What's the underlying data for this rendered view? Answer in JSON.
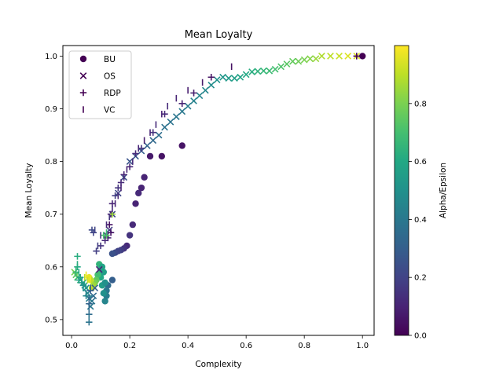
{
  "chart_data": {
    "type": "scatter",
    "title": "Mean Loyalty",
    "xlabel": "Complexity",
    "ylabel": "Mean Loyalty",
    "xlim": [
      -0.03,
      1.04
    ],
    "ylim": [
      0.47,
      1.02
    ],
    "xticks": [
      "0.0",
      "0.2",
      "0.4",
      "0.6",
      "0.8",
      "1.0"
    ],
    "yticks": [
      "0.5",
      "0.6",
      "0.7",
      "0.8",
      "0.9",
      "1.0"
    ],
    "grid": false,
    "legend_position": "upper-left",
    "colorbar": {
      "label": "Alpha/Epsilon",
      "range": [
        0.0,
        1.0
      ],
      "ticks": [
        "0.0",
        "0.2",
        "0.4",
        "0.6",
        "0.8"
      ],
      "colormap": "viridis"
    },
    "series": [
      {
        "name": "BU",
        "marker": "circle",
        "points": [
          [
            1.0,
            1.0,
            0.0
          ],
          [
            0.38,
            0.83,
            0.05
          ],
          [
            0.31,
            0.81,
            0.05
          ],
          [
            0.27,
            0.81,
            0.07
          ],
          [
            0.25,
            0.77,
            0.1
          ],
          [
            0.24,
            0.75,
            0.1
          ],
          [
            0.23,
            0.74,
            0.12
          ],
          [
            0.22,
            0.72,
            0.1
          ],
          [
            0.21,
            0.68,
            0.12
          ],
          [
            0.2,
            0.66,
            0.15
          ],
          [
            0.19,
            0.64,
            0.12
          ],
          [
            0.18,
            0.635,
            0.15
          ],
          [
            0.17,
            0.632,
            0.18
          ],
          [
            0.16,
            0.63,
            0.2
          ],
          [
            0.15,
            0.627,
            0.22
          ],
          [
            0.14,
            0.625,
            0.25
          ],
          [
            0.14,
            0.575,
            0.3
          ],
          [
            0.125,
            0.565,
            0.35
          ],
          [
            0.12,
            0.555,
            0.4
          ],
          [
            0.12,
            0.545,
            0.42
          ],
          [
            0.115,
            0.535,
            0.45
          ],
          [
            0.11,
            0.55,
            0.5
          ],
          [
            0.105,
            0.565,
            0.55
          ],
          [
            0.1,
            0.58,
            0.6
          ],
          [
            0.1,
            0.595,
            0.62
          ],
          [
            0.095,
            0.605,
            0.65
          ],
          [
            0.09,
            0.585,
            0.7
          ],
          [
            0.085,
            0.575,
            0.75
          ],
          [
            0.08,
            0.57,
            0.8
          ],
          [
            0.075,
            0.565,
            0.85
          ],
          [
            0.07,
            0.56,
            0.9
          ],
          [
            0.065,
            0.575,
            0.95
          ],
          [
            0.06,
            0.58,
            0.98
          ],
          [
            0.105,
            0.6,
            0.58
          ],
          [
            0.11,
            0.59,
            0.56
          ],
          [
            0.115,
            0.57,
            0.5
          ]
        ]
      },
      {
        "name": "OS",
        "marker": "x",
        "points": [
          [
            0.98,
            1.0,
            0.95
          ],
          [
            0.95,
            1.0,
            0.95
          ],
          [
            0.92,
            1.0,
            0.92
          ],
          [
            0.89,
            1.0,
            0.9
          ],
          [
            0.86,
            1.0,
            0.88
          ],
          [
            0.84,
            0.995,
            0.85
          ],
          [
            0.82,
            0.995,
            0.82
          ],
          [
            0.8,
            0.993,
            0.8
          ],
          [
            0.78,
            0.99,
            0.78
          ],
          [
            0.76,
            0.99,
            0.76
          ],
          [
            0.74,
            0.985,
            0.74
          ],
          [
            0.72,
            0.98,
            0.72
          ],
          [
            0.7,
            0.975,
            0.7
          ],
          [
            0.68,
            0.972,
            0.68
          ],
          [
            0.66,
            0.972,
            0.66
          ],
          [
            0.64,
            0.971,
            0.64
          ],
          [
            0.62,
            0.97,
            0.62
          ],
          [
            0.6,
            0.965,
            0.6
          ],
          [
            0.58,
            0.96,
            0.58
          ],
          [
            0.56,
            0.958,
            0.56
          ],
          [
            0.54,
            0.958,
            0.54
          ],
          [
            0.52,
            0.96,
            0.52
          ],
          [
            0.5,
            0.955,
            0.5
          ],
          [
            0.48,
            0.945,
            0.48
          ],
          [
            0.46,
            0.935,
            0.46
          ],
          [
            0.44,
            0.925,
            0.45
          ],
          [
            0.42,
            0.915,
            0.44
          ],
          [
            0.4,
            0.905,
            0.42
          ],
          [
            0.38,
            0.895,
            0.4
          ],
          [
            0.36,
            0.885,
            0.39
          ],
          [
            0.34,
            0.875,
            0.38
          ],
          [
            0.32,
            0.865,
            0.37
          ],
          [
            0.3,
            0.85,
            0.36
          ],
          [
            0.28,
            0.84,
            0.34
          ],
          [
            0.26,
            0.83,
            0.32
          ],
          [
            0.24,
            0.82,
            0.3
          ],
          [
            0.22,
            0.81,
            0.28
          ],
          [
            0.2,
            0.8,
            0.26
          ],
          [
            0.18,
            0.77,
            0.24
          ],
          [
            0.16,
            0.74,
            0.22
          ],
          [
            0.14,
            0.7,
            0.2
          ],
          [
            0.13,
            0.67,
            0.18
          ],
          [
            0.12,
            0.66,
            0.15
          ],
          [
            0.095,
            0.595,
            0.1
          ],
          [
            0.08,
            0.56,
            0.3
          ],
          [
            0.075,
            0.545,
            0.35
          ],
          [
            0.07,
            0.535,
            0.38
          ],
          [
            0.065,
            0.525,
            0.4
          ],
          [
            0.06,
            0.54,
            0.42
          ],
          [
            0.055,
            0.55,
            0.45
          ],
          [
            0.05,
            0.56,
            0.5
          ],
          [
            0.045,
            0.565,
            0.55
          ],
          [
            0.04,
            0.57,
            0.6
          ],
          [
            0.03,
            0.575,
            0.65
          ],
          [
            0.02,
            0.58,
            0.7
          ],
          [
            0.015,
            0.585,
            0.75
          ],
          [
            0.01,
            0.59,
            0.8
          ]
        ]
      },
      {
        "name": "RDP",
        "marker": "plus",
        "points": [
          [
            0.98,
            1.0,
            0.0
          ],
          [
            0.48,
            0.96,
            0.05
          ],
          [
            0.42,
            0.93,
            0.08
          ],
          [
            0.38,
            0.91,
            0.1
          ],
          [
            0.32,
            0.89,
            0.12
          ],
          [
            0.28,
            0.855,
            0.15
          ],
          [
            0.24,
            0.825,
            0.15
          ],
          [
            0.22,
            0.815,
            0.12
          ],
          [
            0.2,
            0.79,
            0.1
          ],
          [
            0.18,
            0.775,
            0.1
          ],
          [
            0.17,
            0.76,
            0.12
          ],
          [
            0.16,
            0.75,
            0.15
          ],
          [
            0.15,
            0.735,
            0.18
          ],
          [
            0.14,
            0.72,
            0.1
          ],
          [
            0.135,
            0.7,
            0.08
          ],
          [
            0.13,
            0.68,
            0.05
          ],
          [
            0.135,
            0.665,
            0.05
          ],
          [
            0.125,
            0.655,
            0.1
          ],
          [
            0.115,
            0.65,
            0.12
          ],
          [
            0.1,
            0.64,
            0.15
          ],
          [
            0.085,
            0.63,
            0.18
          ],
          [
            0.075,
            0.665,
            0.2
          ],
          [
            0.07,
            0.67,
            0.22
          ],
          [
            0.065,
            0.555,
            0.3
          ],
          [
            0.06,
            0.53,
            0.32
          ],
          [
            0.06,
            0.51,
            0.35
          ],
          [
            0.06,
            0.495,
            0.38
          ],
          [
            0.05,
            0.545,
            0.45
          ],
          [
            0.04,
            0.565,
            0.5
          ],
          [
            0.03,
            0.58,
            0.55
          ],
          [
            0.02,
            0.6,
            0.6
          ],
          [
            0.02,
            0.62,
            0.62
          ],
          [
            0.015,
            0.59,
            0.65
          ],
          [
            0.025,
            0.575,
            0.58
          ],
          [
            0.035,
            0.57,
            0.52
          ],
          [
            0.12,
            0.66,
            0.75
          ],
          [
            0.11,
            0.66,
            0.72
          ],
          [
            0.14,
            0.7,
            0.85
          ]
        ]
      },
      {
        "name": "VC",
        "marker": "vline",
        "points": [
          [
            0.55,
            0.98,
            0.05
          ],
          [
            0.45,
            0.95,
            0.07
          ],
          [
            0.4,
            0.935,
            0.08
          ],
          [
            0.36,
            0.92,
            0.1
          ],
          [
            0.33,
            0.905,
            0.12
          ],
          [
            0.31,
            0.89,
            0.1
          ],
          [
            0.29,
            0.87,
            0.12
          ],
          [
            0.27,
            0.855,
            0.1
          ],
          [
            0.25,
            0.84,
            0.08
          ],
          [
            0.23,
            0.825,
            0.1
          ],
          [
            0.21,
            0.8,
            0.12
          ],
          [
            0.19,
            0.785,
            0.1
          ],
          [
            0.18,
            0.77,
            0.12
          ],
          [
            0.17,
            0.75,
            0.1
          ],
          [
            0.16,
            0.735,
            0.12
          ],
          [
            0.15,
            0.72,
            0.1
          ],
          [
            0.14,
            0.71,
            0.12
          ],
          [
            0.13,
            0.695,
            0.15
          ],
          [
            0.12,
            0.68,
            0.12
          ],
          [
            0.1,
            0.66,
            0.15
          ],
          [
            0.09,
            0.64,
            0.18
          ],
          [
            0.08,
            0.67,
            0.2
          ],
          [
            0.065,
            0.56,
            0.3
          ],
          [
            0.06,
            0.54,
            0.32
          ],
          [
            0.06,
            0.52,
            0.35
          ],
          [
            0.06,
            0.505,
            0.38
          ],
          [
            0.05,
            0.55,
            0.45
          ],
          [
            0.04,
            0.56,
            0.5
          ],
          [
            0.035,
            0.575,
            0.55
          ],
          [
            0.03,
            0.58,
            0.58
          ],
          [
            0.025,
            0.59,
            0.6
          ],
          [
            0.02,
            0.605,
            0.62
          ],
          [
            0.015,
            0.595,
            0.65
          ],
          [
            0.06,
            0.58,
            0.95
          ],
          [
            0.05,
            0.585,
            0.98
          ],
          [
            0.045,
            0.58,
            0.9
          ],
          [
            0.055,
            0.575,
            0.92
          ],
          [
            0.07,
            0.575,
            0.88
          ],
          [
            0.11,
            0.66,
            0.7
          ],
          [
            0.12,
            0.665,
            0.68
          ]
        ]
      }
    ]
  }
}
